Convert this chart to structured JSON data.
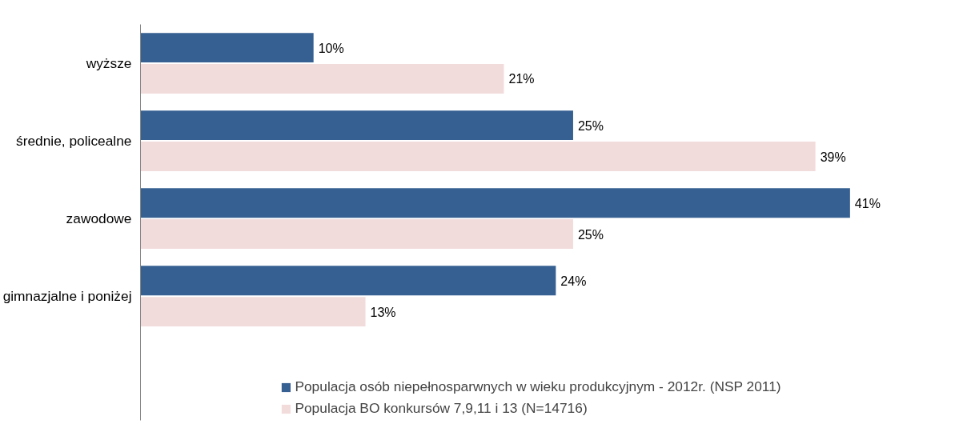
{
  "chart_data": {
    "type": "bar",
    "orientation": "horizontal",
    "legend": "bottom",
    "grid": false,
    "categories": [
      "wyższe",
      "średnie, policealne",
      "zawodowe",
      "gimnazjalne i poniżej"
    ],
    "series": [
      {
        "name": "Populacja osób niepełnosparwnych w wieku produkcyjnym - 2012r. (NSP 2011)",
        "color": "#366092",
        "values": [
          10,
          25,
          41,
          24
        ],
        "value_labels": [
          "10%",
          "25%",
          "41%",
          "24%"
        ]
      },
      {
        "name": "Populacja BO konkursów 7,9,11 i 13 (N=14716)",
        "color": "#f2dcdb",
        "values": [
          21,
          39,
          25,
          13
        ],
        "value_labels": [
          "21%",
          "39%",
          "25%",
          "13%"
        ]
      }
    ]
  }
}
